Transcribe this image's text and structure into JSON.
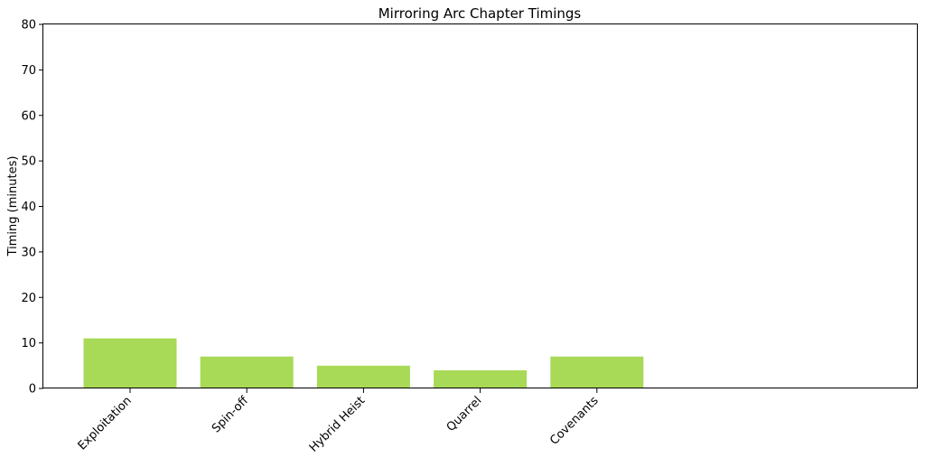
{
  "chart_data": {
    "type": "bar",
    "title": "Mirroring Arc Chapter Timings",
    "xlabel": "",
    "ylabel": "Timing (minutes)",
    "categories": [
      "Exploitation",
      "Spin-off",
      "Hybrid Heist",
      "Quarrel",
      "Covenants"
    ],
    "values": [
      11,
      7,
      5,
      4,
      7
    ],
    "ylim": [
      0,
      80
    ],
    "yticks": [
      0,
      10,
      20,
      30,
      40,
      50,
      60,
      70,
      80
    ],
    "grid": false,
    "bar_color": "#a8d957",
    "empty_slots_right": 2
  }
}
